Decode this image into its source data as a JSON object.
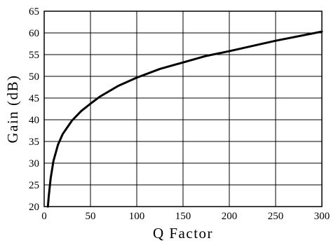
{
  "chart_data": {
    "type": "line",
    "title": "",
    "xlabel": "Q Factor",
    "ylabel": "Gain (dB)",
    "xlim": [
      0,
      300
    ],
    "ylim": [
      20,
      65
    ],
    "x_ticks": [
      "0",
      "50",
      "100",
      "150",
      "200",
      "250",
      "300"
    ],
    "y_ticks": [
      "20",
      "25",
      "30",
      "35",
      "40",
      "45",
      "50",
      "55",
      "60",
      "65"
    ],
    "grid": true,
    "legend": "none",
    "series": [
      {
        "color": "#000000",
        "x": [
          4,
          5,
          7,
          10,
          15,
          20,
          30,
          40,
          50,
          60,
          80,
          100,
          125,
          150,
          175,
          200,
          250,
          300
        ],
        "y": [
          20,
          22.5,
          26.5,
          30.5,
          34.3,
          36.7,
          39.8,
          42.0,
          43.7,
          45.3,
          47.8,
          49.7,
          51.7,
          53.2,
          54.7,
          55.8,
          58.2,
          60.3
        ]
      }
    ]
  }
}
